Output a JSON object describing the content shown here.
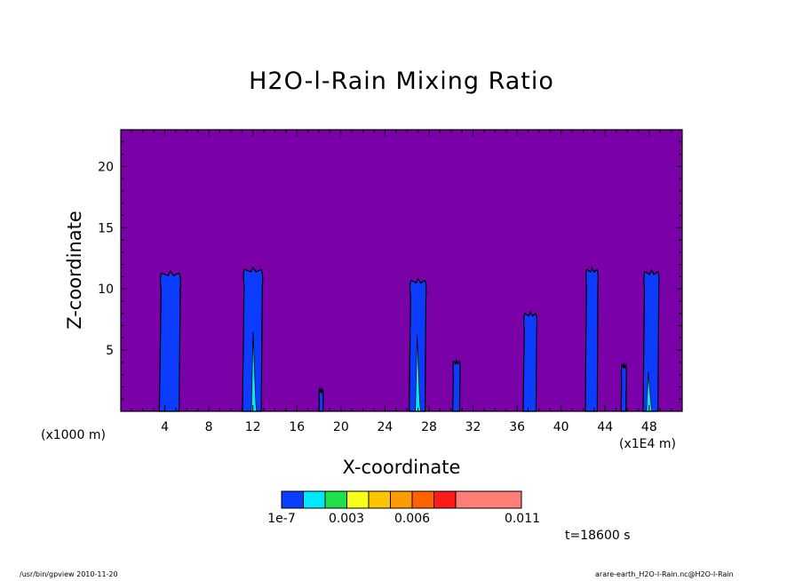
{
  "chart_data": {
    "type": "heatmap",
    "title": "H2O-l-Rain Mixing Ratio",
    "xlabel": "X-coordinate",
    "ylabel": "Z-coordinate",
    "x_unit_note": "(x1000 m)",
    "x_unit_note_right": "(x1E4 m)",
    "xlim": [
      0,
      51
    ],
    "ylim": [
      0,
      23
    ],
    "x_ticks": [
      4,
      8,
      12,
      16,
      20,
      24,
      28,
      32,
      36,
      40,
      44,
      48
    ],
    "y_ticks": [
      5,
      10,
      15,
      20
    ],
    "background_color": "#7a00a8",
    "colorbar": {
      "colors": [
        "#0c3cff",
        "#00e8ff",
        "#1fe04a",
        "#f5ff1a",
        "#ffc400",
        "#ff9a00",
        "#ff6200",
        "#ff1a1a",
        "#ff7e78"
      ],
      "labels": [
        "1e-7",
        "0.003",
        "0.006",
        "0.011"
      ]
    },
    "cells": [
      {
        "x_center": 4.5,
        "top": 11.3,
        "width_km": 2.0
      },
      {
        "x_center": 12.0,
        "top": 11.6,
        "width_km": 1.9
      },
      {
        "x_center": 18.2,
        "top": 1.8,
        "width_km": 0.4
      },
      {
        "x_center": 27.0,
        "top": 10.7,
        "width_km": 1.6
      },
      {
        "x_center": 30.5,
        "top": 4.1,
        "width_km": 0.7
      },
      {
        "x_center": 37.2,
        "top": 8.0,
        "width_km": 1.3
      },
      {
        "x_center": 42.8,
        "top": 11.6,
        "width_km": 1.2
      },
      {
        "x_center": 45.7,
        "top": 3.8,
        "width_km": 0.5
      },
      {
        "x_center": 48.2,
        "top": 11.4,
        "width_km": 1.5
      }
    ]
  },
  "time_label": "t=18600 s",
  "footer_left": "/usr/bin/gpview   2010-11-20",
  "footer_right": "arare-earth_H2O-l-Rain.nc@H2O-l-Rain"
}
